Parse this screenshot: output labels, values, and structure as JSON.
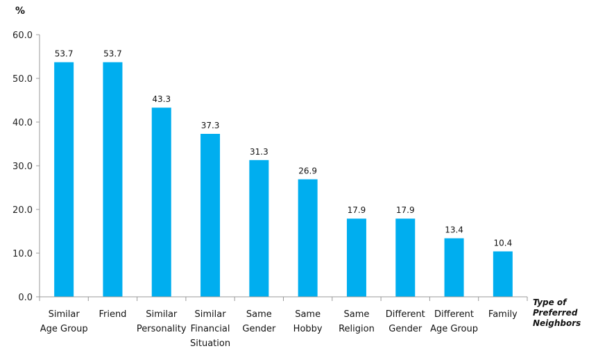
{
  "chart_data": {
    "type": "bar",
    "categories": [
      [
        "Similar",
        "Age Group"
      ],
      [
        "Friend"
      ],
      [
        "Similar",
        "Personality"
      ],
      [
        "Similar",
        "Financial",
        "Situation"
      ],
      [
        "Same",
        "Gender"
      ],
      [
        "Same",
        "Hobby"
      ],
      [
        "Same",
        "Religion"
      ],
      [
        "Different",
        "Gender"
      ],
      [
        "Different",
        "Age Group"
      ],
      [
        "Family"
      ]
    ],
    "values": [
      53.7,
      53.7,
      43.3,
      37.3,
      31.3,
      26.9,
      17.9,
      17.9,
      13.4,
      10.4
    ],
    "value_labels": [
      "53.7",
      "53.7",
      "43.3",
      "37.3",
      "31.3",
      "26.9",
      "17.9",
      "17.9",
      "13.4",
      "10.4"
    ],
    "y_unit": "%",
    "xlabel": [
      "Type of",
      "Preferred",
      "Neighbors"
    ],
    "ylim": [
      0,
      60
    ],
    "y_ticks": [
      "0.0",
      "10.0",
      "20.0",
      "30.0",
      "40.0",
      "50.0",
      "60.0"
    ],
    "bar_color": "#00AEEF",
    "axis_color": "#999999",
    "grid": false,
    "legend": "none"
  }
}
